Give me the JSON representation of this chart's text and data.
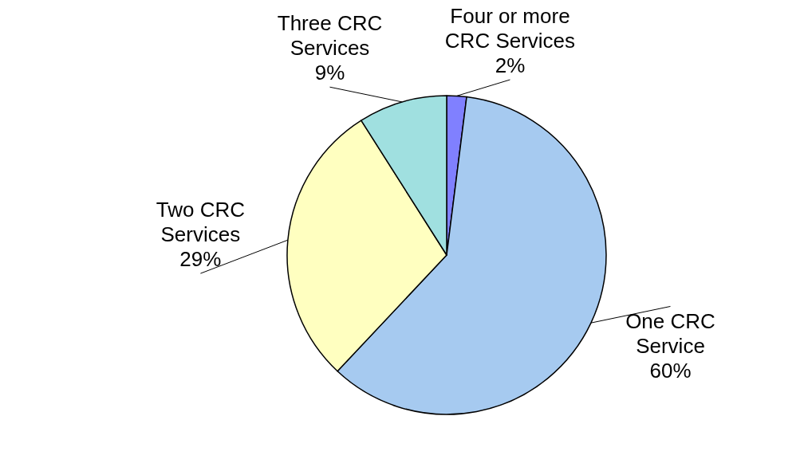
{
  "chart_data": {
    "type": "pie",
    "categories": [
      "Four or more CRC Services",
      "One CRC Service",
      "Two CRC Services",
      "Three CRC Services"
    ],
    "values": [
      2,
      60,
      29,
      9
    ],
    "colors": [
      "#8080ff",
      "#a6caf0",
      "#ffffc0",
      "#a0e0e0"
    ],
    "value_labels": [
      "2%",
      "60%",
      "29%",
      "9%"
    ]
  }
}
